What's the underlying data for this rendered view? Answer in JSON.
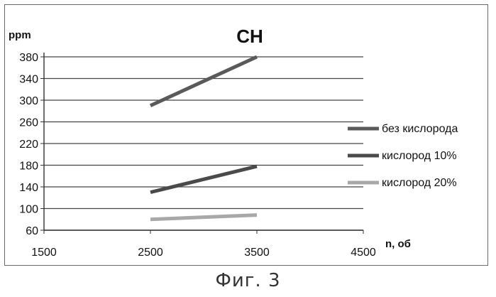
{
  "figure_caption": "Фиг. 3",
  "chart_data": {
    "type": "line",
    "title": "CH",
    "ylabel": "ppm",
    "xlabel": "n, об",
    "x_ticks": [
      1500,
      2500,
      3500,
      4500
    ],
    "y_ticks": [
      60,
      100,
      140,
      180,
      220,
      260,
      300,
      340,
      380
    ],
    "xlim": [
      1500,
      4500
    ],
    "ylim": [
      60,
      380
    ],
    "grid": true,
    "legend_position": "right",
    "series": [
      {
        "name": "без кислорода",
        "color": "#5a5a5a",
        "x": [
          2500,
          3500
        ],
        "y": [
          290,
          380
        ]
      },
      {
        "name": "кислород 10%",
        "color": "#4a4a4a",
        "x": [
          2500,
          3500
        ],
        "y": [
          130,
          178
        ]
      },
      {
        "name": "кислород 20%",
        "color": "#a8a8a8",
        "x": [
          2500,
          3500
        ],
        "y": [
          80,
          88
        ]
      }
    ]
  }
}
